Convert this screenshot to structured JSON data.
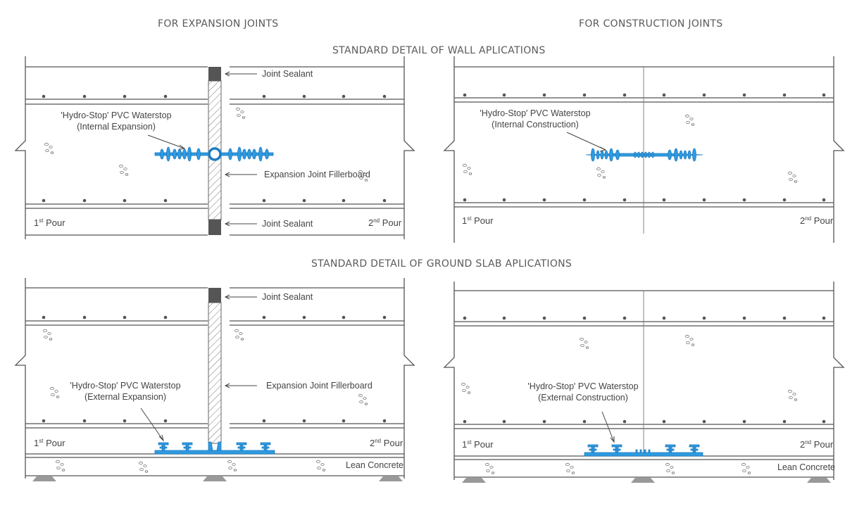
{
  "headings": {
    "expansion": "FOR EXPANSION JOINTS",
    "construction": "FOR CONSTRUCTION JOINTS",
    "wall": "STANDARD DETAIL OF WALL APLICATIONS",
    "slab": "STANDARD DETAIL OF GROUND SLAB APLICATIONS"
  },
  "wall_expansion": {
    "sealant_top": "Joint Sealant",
    "sealant_bottom": "Joint Sealant",
    "fillerboard": "Expansion Joint Fillerboard",
    "waterstop_line1": "'Hydro-Stop' PVC Waterstop",
    "waterstop_line2": "(Internal Expansion)",
    "first_pour": "1",
    "first_pour_sup": "st",
    "second_pour": "2",
    "second_pour_sup": "nd",
    "pour_word": "Pour"
  },
  "wall_construction": {
    "waterstop_line1": "'Hydro-Stop' PVC Waterstop",
    "waterstop_line2": "(Internal Construction)",
    "first_pour": "1",
    "first_pour_sup": "st",
    "second_pour": "2",
    "second_pour_sup": "nd",
    "pour_word": "Pour"
  },
  "slab_expansion": {
    "sealant": "Joint Sealant",
    "fillerboard": "Expansion Joint Fillerboard",
    "waterstop_line1": "'Hydro-Stop' PVC Waterstop",
    "waterstop_line2": "(External Expansion)",
    "first_pour": "1",
    "first_pour_sup": "st",
    "second_pour": "2",
    "second_pour_sup": "nd",
    "pour_word": "Pour",
    "lean": "Lean Concrete"
  },
  "slab_construction": {
    "waterstop_line1": "'Hydro-Stop' PVC Waterstop",
    "waterstop_line2": "(External Construction)",
    "first_pour": "1",
    "first_pour_sup": "st",
    "second_pour": "2",
    "second_pour_sup": "nd",
    "pour_word": "Pour",
    "lean": "Lean Concrete"
  },
  "colors": {
    "waterstop": "#2f9be0",
    "line": "#555555",
    "sealant": "#555555"
  }
}
